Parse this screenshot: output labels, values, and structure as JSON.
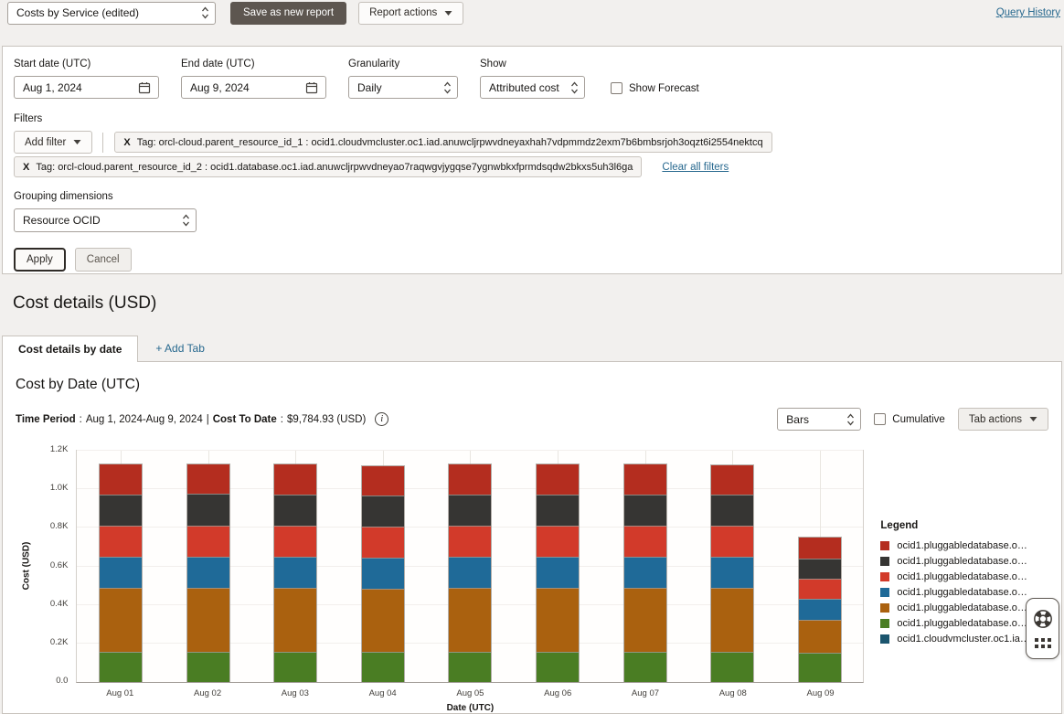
{
  "topbar": {
    "report_select_value": "Costs by Service (edited)",
    "save_as_new_report": "Save as new report",
    "report_actions": "Report actions",
    "query_history": "Query History"
  },
  "filters_panel": {
    "start_date_label": "Start date (UTC)",
    "start_date_value": "Aug 1, 2024",
    "end_date_label": "End date (UTC)",
    "end_date_value": "Aug 9, 2024",
    "granularity_label": "Granularity",
    "granularity_value": "Daily",
    "show_label": "Show",
    "show_value": "Attributed cost",
    "show_forecast": "Show Forecast",
    "filters_label": "Filters",
    "add_filter": "Add filter",
    "chips": [
      {
        "remove": "X",
        "text": "Tag: orcl-cloud.parent_resource_id_1 : ocid1.cloudvmcluster.oc1.iad.anuwcljrpwvdneyaxhah7vdpmmdz2exm7b6bmbsrjoh3oqzt6i2554nektcq"
      },
      {
        "remove": "X",
        "text": "Tag: orcl-cloud.parent_resource_id_2 : ocid1.database.oc1.iad.anuwcljrpwvdneyao7raqwgvjygqse7ygnwbkxfprmdsqdw2bkxs5uh3l6ga"
      }
    ],
    "clear_all_filters": "Clear all filters",
    "grouping_label": "Grouping dimensions",
    "grouping_value": "Resource OCID",
    "apply": "Apply",
    "cancel": "Cancel"
  },
  "section": {
    "title": "Cost details (USD)",
    "active_tab": "Cost details by date",
    "add_tab": "+ Add Tab"
  },
  "panel": {
    "title": "Cost by Date (UTC)",
    "time_period_label": "Time Period",
    "colon": ":",
    "time_period_value": "Aug 1, 2024-Aug 9, 2024",
    "pipe": "|",
    "cost_to_date_label": "Cost To Date",
    "cost_to_date_value": "$9,784.93 (USD)",
    "info_icon_glyph": "i",
    "chart_type_value": "Bars",
    "cumulative": "Cumulative",
    "tab_actions": "Tab actions"
  },
  "chart_data": {
    "type": "bar",
    "stacked": true,
    "title": "Cost by Date (UTC)",
    "xlabel": "Date (UTC)",
    "ylabel": "Cost (USD)",
    "ylim": [
      0,
      1200
    ],
    "yticks": [
      "0.0",
      "0.2K",
      "0.4K",
      "0.6K",
      "0.8K",
      "1.0K",
      "1.2K"
    ],
    "grid": true,
    "legend_title": "Legend",
    "legend_position": "right",
    "series_order_note": "series listed top-of-stack first; bars stack bottom-to-top in reverse of this list",
    "categories": [
      "Aug 01",
      "Aug 02",
      "Aug 03",
      "Aug 04",
      "Aug 05",
      "Aug 06",
      "Aug 07",
      "Aug 08",
      "Aug 09"
    ],
    "series": [
      {
        "name": "ocid1.pluggabledatabase.o…",
        "color": "#b42d1f",
        "values": [
          155,
          156,
          155,
          154,
          156,
          155,
          156,
          155,
          110
        ]
      },
      {
        "name": "ocid1.pluggabledatabase.o…",
        "color": "#363533",
        "values": [
          163,
          163,
          163,
          162,
          163,
          163,
          163,
          162,
          105
        ]
      },
      {
        "name": "ocid1.pluggabledatabase.o…",
        "color": "#d23a2a",
        "values": [
          161,
          161,
          161,
          160,
          161,
          161,
          161,
          160,
          104
        ]
      },
      {
        "name": "ocid1.pluggabledatabase.o…",
        "color": "#1f6a98",
        "values": [
          161,
          162,
          161,
          160,
          161,
          161,
          161,
          161,
          109
        ]
      },
      {
        "name": "ocid1.pluggabledatabase.o…",
        "color": "#aa610f",
        "values": [
          331,
          332,
          332,
          330,
          332,
          331,
          332,
          331,
          171
        ]
      },
      {
        "name": "ocid1.pluggabledatabase.o…",
        "color": "#4a7d23",
        "values": [
          157,
          157,
          157,
          156,
          157,
          157,
          157,
          157,
          153
        ]
      },
      {
        "name": "ocid1.cloudvmcluster.oc1.ia…",
        "color": "#1b556e",
        "values": [
          0,
          0,
          0,
          0,
          0,
          0,
          0,
          0,
          0
        ]
      }
    ]
  }
}
